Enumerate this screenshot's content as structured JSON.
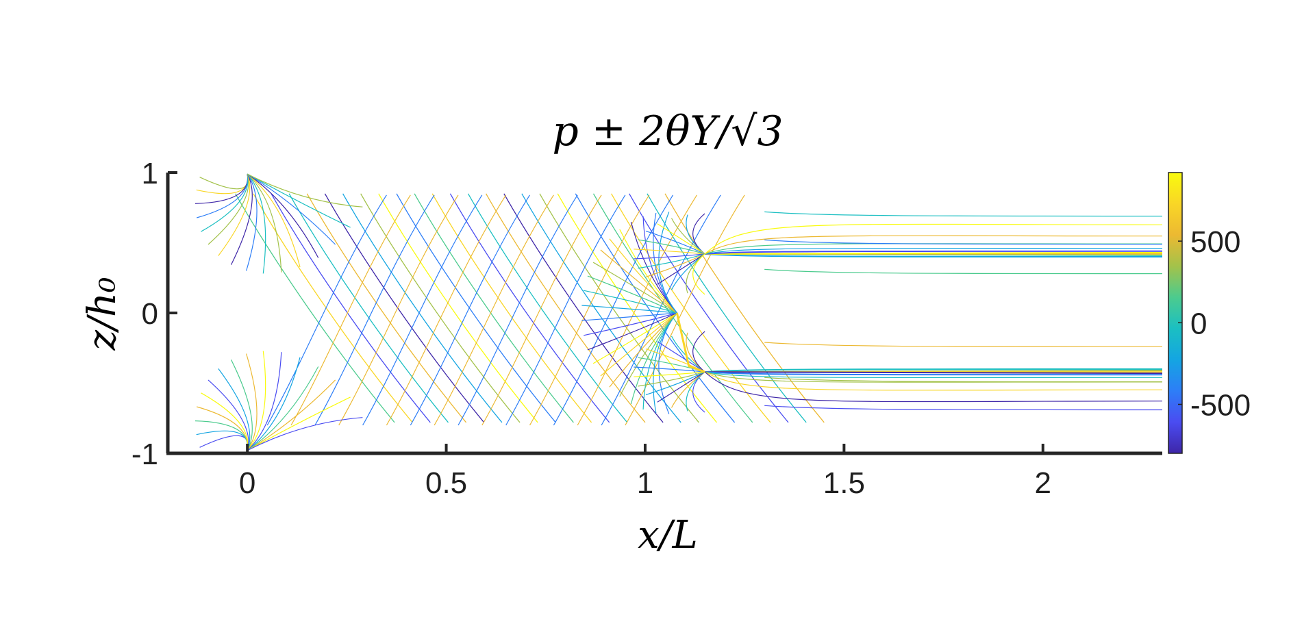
{
  "chart_data": {
    "type": "contour",
    "title": "p ± 2θY/√3",
    "xlabel": "x/L",
    "ylabel": "z/h₀",
    "xlim": [
      -0.2,
      2.3
    ],
    "ylim": [
      -1,
      1
    ],
    "x_ticks": [
      0,
      0.5,
      1,
      1.5,
      2
    ],
    "x_tick_labels": [
      "0",
      "0.5",
      "1",
      "1.5",
      "2"
    ],
    "y_ticks": [
      -1,
      0,
      1
    ],
    "y_tick_labels": [
      "-1",
      "0",
      "1"
    ],
    "colorbar": {
      "colormap": "parula",
      "range": [
        -800,
        920
      ],
      "ticks": [
        -500,
        0,
        500
      ],
      "tick_labels": [
        "-500",
        "0",
        "500"
      ],
      "colors": [
        "#3e26a8",
        "#4a4cf1",
        "#2d7ef7",
        "#14a5e2",
        "#1bbfc2",
        "#4ccb8e",
        "#a3c24a",
        "#ecb932",
        "#f9d626",
        "#f9fb0e"
      ]
    },
    "features": {
      "die_inlet_x": 0,
      "die_exit_x": 1.08,
      "deformed_zone_top_z": 0.42,
      "deformed_zone_bottom_z": -0.42,
      "grid": false,
      "legend": "none"
    }
  }
}
